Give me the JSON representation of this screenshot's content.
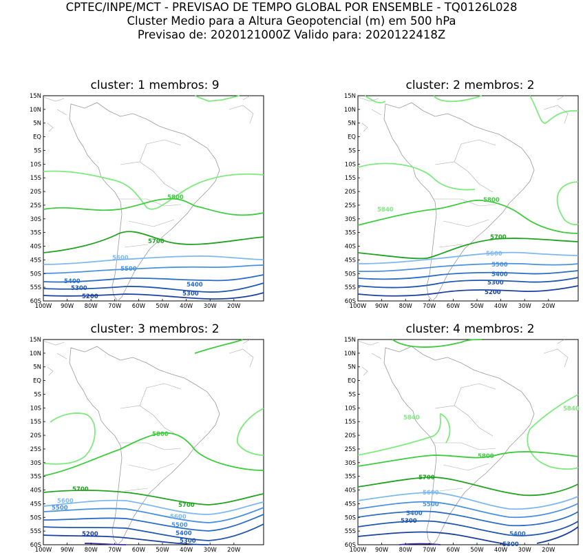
{
  "header": {
    "line1": "CPTEC/INPE/MCT - PREVISAO DE TEMPO GLOBAL POR ENSEMBLE - TQ0126L028",
    "line2": "Cluster Medio para a Altura Geopotencial (m) em 500 hPa",
    "line3": "Previsao de: 2020121000Z    Valido para: 2020122418Z"
  },
  "panels": [
    {
      "title": "cluster: 1   membros: 9"
    },
    {
      "title": "cluster: 2   membros: 2"
    },
    {
      "title": "cluster: 3   membros: 2"
    },
    {
      "title": "cluster: 4   membros: 2"
    }
  ],
  "lat_ticks": [
    "15N",
    "10N",
    "5N",
    "EQ",
    "5S",
    "10S",
    "15S",
    "20S",
    "25S",
    "30S",
    "35S",
    "40S",
    "45S",
    "50S",
    "55S",
    "60S"
  ],
  "lon_ticks": [
    "100W",
    "90W",
    "80W",
    "70W",
    "60W",
    "50W",
    "40W",
    "30W",
    "20W"
  ],
  "contour_colors": {
    "5840": "#7dea7d",
    "5800": "#3ccc3c",
    "5700": "#1fa31f",
    "5600": "#7eb8f0",
    "5500": "#4a90e0",
    "5400": "#2a6cc8",
    "5300": "#1f55b0",
    "5200": "#1a3fa0",
    "5100": "#3a2aa0"
  },
  "contour_labels": {
    "p1": [
      "5800",
      "5700",
      "5600",
      "5500",
      "5400",
      "5400",
      "5300",
      "5300",
      "5200"
    ],
    "p2": [
      "5840",
      "5800",
      "5700",
      "5600",
      "5500",
      "5400",
      "5300",
      "5200"
    ],
    "p3": [
      "5800",
      "5700",
      "5700",
      "5600",
      "5600",
      "5500",
      "5500",
      "5400",
      "5300",
      "5200"
    ],
    "p4": [
      "5840",
      "5840",
      "5800",
      "5700",
      "5600",
      "5500",
      "5400",
      "5300",
      "5400",
      "5300"
    ]
  }
}
